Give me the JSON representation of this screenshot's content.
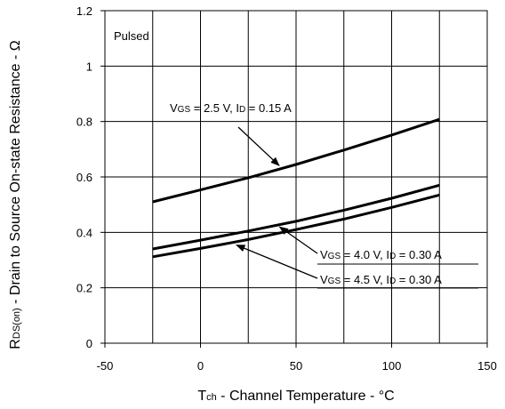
{
  "chart_data": {
    "type": "line",
    "note_label": "Pulsed",
    "xlabel": {
      "main": "T",
      "sub": "ch",
      "rest": " - Channel Temperature - °C"
    },
    "ylabel": {
      "main": "R",
      "sub": "DS(on)",
      "rest": " - Drain to Source On-state Resistance - Ω"
    },
    "xlim": [
      -50,
      150
    ],
    "ylim": [
      0,
      1.2
    ],
    "x_ticks": [
      -50,
      0,
      50,
      100,
      150
    ],
    "x_tick_labels": [
      "-50",
      "0",
      "50",
      "100",
      "150"
    ],
    "y_ticks": [
      0,
      0.2,
      0.4,
      0.6,
      0.8,
      1,
      1.2
    ],
    "y_tick_labels": [
      "0",
      "0.2",
      "0.4",
      "0.6",
      "0.8",
      "1",
      "1.2"
    ],
    "x_grid": [
      -25,
      0,
      25,
      50,
      75,
      100,
      125
    ],
    "y_grid": [
      0.2,
      0.4,
      0.6,
      0.8,
      1.0
    ],
    "grid": true,
    "series": [
      {
        "label": {
          "v": "V",
          "vsub": "GS",
          "vrest": " = 2.5 V, I",
          "isub": "D",
          "irest": " = 0.15 A"
        },
        "x": [
          -25,
          0,
          25,
          50,
          75,
          100,
          125
        ],
        "y": [
          0.51,
          0.553,
          0.597,
          0.645,
          0.697,
          0.751,
          0.808
        ]
      },
      {
        "label": {
          "v": "V",
          "vsub": "GS",
          "vrest": " = 4.0 V, I",
          "isub": "D",
          "irest": " = 0.30 A"
        },
        "x": [
          -25,
          0,
          25,
          50,
          75,
          100,
          125
        ],
        "y": [
          0.34,
          0.372,
          0.405,
          0.44,
          0.48,
          0.523,
          0.57
        ]
      },
      {
        "label": {
          "v": "V",
          "vsub": "GS",
          "vrest": " = 4.5 V, I",
          "isub": "D",
          "irest": " = 0.30 A"
        },
        "x": [
          -25,
          0,
          25,
          50,
          75,
          100,
          125
        ],
        "y": [
          0.312,
          0.342,
          0.374,
          0.41,
          0.448,
          0.49,
          0.535
        ]
      }
    ]
  }
}
